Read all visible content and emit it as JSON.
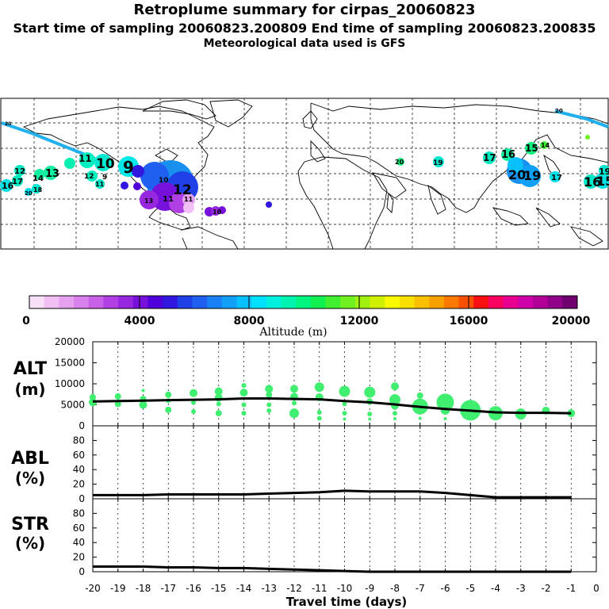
{
  "header": {
    "title": "Retroplume summary for cirpas_20060823",
    "sampling": "Start time of sampling 20060823.200809     End time of sampling 20060823.200835",
    "met": "Meteorological data used is GFS"
  },
  "colorbar": {
    "ticks": [
      "0",
      "4000",
      "8000",
      "12000",
      "16000",
      "20000"
    ],
    "label": "Altitude (m)",
    "colors": [
      "#f8e0f8",
      "#f0c0f4",
      "#e6a0f0",
      "#d880ec",
      "#c860e8",
      "#b040e4",
      "#9828e0",
      "#7810dc",
      "#5000d8",
      "#3018e0",
      "#2040e8",
      "#2060f0",
      "#1880f4",
      "#10a0f8",
      "#08c0fc",
      "#00e0ff",
      "#00f0e0",
      "#00f4b0",
      "#00f480",
      "#10f050",
      "#40f030",
      "#70f020",
      "#a0f010",
      "#d0f000",
      "#f8f800",
      "#f8e000",
      "#f8c000",
      "#f8a000",
      "#f87800",
      "#f85000",
      "#f81010",
      "#f80060",
      "#e80090",
      "#d000a8",
      "#b00098",
      "#900088",
      "#700070"
    ]
  },
  "map_labels": [
    "10",
    "9",
    "11",
    "13",
    "12",
    "14",
    "16",
    "17",
    "18",
    "19",
    "20",
    "15"
  ],
  "chart_data": [
    {
      "type": "line",
      "name": "ALT",
      "ylabel": "ALT\n(m)",
      "ylabel_lines": [
        "ALT",
        "(m)"
      ],
      "ylim": [
        0,
        20000
      ],
      "yticks": [
        0,
        5000,
        10000,
        15000,
        20000
      ],
      "x": [
        -20,
        -19,
        -18,
        -17,
        -16,
        -15,
        -14,
        -13,
        -12,
        -11,
        -10,
        -9,
        -8,
        -7,
        -6,
        -5,
        -4,
        -3,
        -2,
        -1
      ],
      "values": [
        5800,
        5900,
        6000,
        6100,
        6200,
        6300,
        6500,
        6500,
        6400,
        6300,
        5900,
        5600,
        5100,
        4500,
        4000,
        3600,
        3200,
        3100,
        3100,
        3000
      ],
      "scatter": {
        "color": "#40ee70",
        "points": [
          [
            -20,
            6800,
            4
          ],
          [
            -20,
            5600,
            5
          ],
          [
            -19,
            7000,
            4
          ],
          [
            -19,
            5200,
            4
          ],
          [
            -18,
            8400,
            2
          ],
          [
            -18,
            6400,
            4
          ],
          [
            -18,
            5000,
            5
          ],
          [
            -17,
            7400,
            4
          ],
          [
            -17,
            6000,
            3
          ],
          [
            -17,
            3800,
            4
          ],
          [
            -16,
            7800,
            5
          ],
          [
            -16,
            5600,
            3
          ],
          [
            -16,
            3400,
            3
          ],
          [
            -15,
            8200,
            5
          ],
          [
            -15,
            6700,
            5
          ],
          [
            -15,
            5200,
            3
          ],
          [
            -15,
            3000,
            4
          ],
          [
            -14,
            9600,
            3
          ],
          [
            -14,
            7900,
            5
          ],
          [
            -14,
            5000,
            3
          ],
          [
            -14,
            3000,
            3
          ],
          [
            -13,
            8800,
            5
          ],
          [
            -13,
            7400,
            4
          ],
          [
            -13,
            5000,
            3
          ],
          [
            -13,
            3600,
            3
          ],
          [
            -12,
            8800,
            5
          ],
          [
            -12,
            6900,
            5
          ],
          [
            -12,
            5400,
            3
          ],
          [
            -12,
            3000,
            6
          ],
          [
            -11,
            9200,
            6
          ],
          [
            -11,
            6800,
            5
          ],
          [
            -11,
            3200,
            3
          ],
          [
            -11,
            1800,
            3
          ],
          [
            -10,
            8200,
            7
          ],
          [
            -10,
            5200,
            3
          ],
          [
            -10,
            3000,
            3
          ],
          [
            -10,
            1600,
            2
          ],
          [
            -9,
            8000,
            7
          ],
          [
            -9,
            5800,
            4
          ],
          [
            -9,
            2800,
            3
          ],
          [
            -9,
            1600,
            2
          ],
          [
            -8,
            9400,
            5
          ],
          [
            -8,
            6200,
            7
          ],
          [
            -8,
            4800,
            5
          ],
          [
            -8,
            3000,
            3
          ],
          [
            -8,
            1700,
            2
          ],
          [
            -7,
            7200,
            4
          ],
          [
            -7,
            4600,
            10
          ],
          [
            -7,
            3600,
            3
          ],
          [
            -7,
            1800,
            2
          ],
          [
            -6,
            5600,
            11
          ],
          [
            -6,
            3800,
            6
          ],
          [
            -6,
            1700,
            2
          ],
          [
            -5,
            3700,
            13
          ],
          [
            -5,
            1700,
            2
          ],
          [
            -4,
            3000,
            9
          ],
          [
            -3,
            2800,
            7
          ],
          [
            -2,
            3600,
            5
          ],
          [
            -1,
            3000,
            5
          ]
        ]
      }
    },
    {
      "type": "line",
      "name": "ABL",
      "ylabel": "ABL\n(%)",
      "ylabel_lines": [
        "ABL",
        "(%)"
      ],
      "ylim": [
        0,
        100
      ],
      "yticks": [
        0,
        20,
        40,
        60,
        80
      ],
      "x": [
        -20,
        -19,
        -18,
        -17,
        -16,
        -15,
        -14,
        -13,
        -12,
        -11,
        -10,
        -9,
        -8,
        -7,
        -6,
        -5,
        -4,
        -3,
        -2,
        -1
      ],
      "values": [
        5,
        5,
        5,
        6,
        6,
        6,
        6,
        7,
        8,
        9,
        11,
        10,
        10,
        10,
        8,
        5,
        2,
        2,
        2,
        2
      ]
    },
    {
      "type": "line",
      "name": "STR",
      "ylabel": "STR\n(%)",
      "ylabel_lines": [
        "STR",
        "(%)"
      ],
      "ylim": [
        0,
        100
      ],
      "yticks": [
        0,
        20,
        40,
        60,
        80
      ],
      "x": [
        -20,
        -19,
        -18,
        -17,
        -16,
        -15,
        -14,
        -13,
        -12,
        -11,
        -10,
        -9,
        -8,
        -7,
        -6,
        -5,
        -4,
        -3,
        -2,
        -1
      ],
      "values": [
        7,
        7,
        7,
        6,
        6,
        5,
        5,
        4,
        3,
        2,
        1,
        0,
        0,
        0,
        0,
        0,
        0,
        0,
        0,
        0
      ],
      "xlabel": "Travel time (days)",
      "xticks": [
        -20,
        -19,
        -18,
        -17,
        -16,
        -15,
        -14,
        -13,
        -12,
        -11,
        -10,
        -9,
        -8,
        -7,
        -6,
        -5,
        -4,
        -3,
        -2,
        -1,
        0
      ]
    }
  ]
}
